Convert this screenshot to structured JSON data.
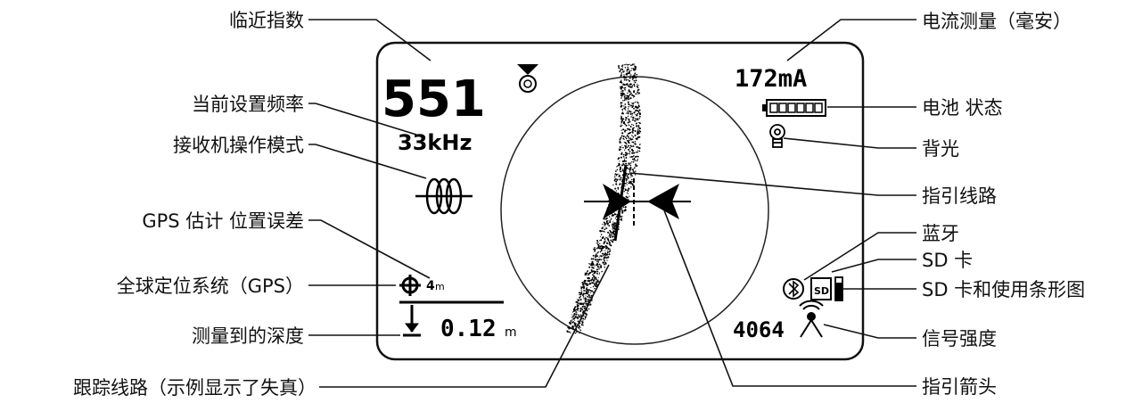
{
  "screen": {
    "proximity_value": "551",
    "frequency": "33kHz",
    "current": "172mA",
    "gps_error": "4",
    "gps_error_unit": "m",
    "depth": "0.12",
    "depth_unit": "m",
    "signal_strength": "4064",
    "sd_label": "SD"
  },
  "callouts": {
    "proximity_index": "临近指数",
    "current_frequency": "当前设置频率",
    "receiver_mode": "接收机操作模式",
    "gps_error": "GPS 估计 位置误差",
    "gps": "全球定位系统（GPS）",
    "depth": "测量到的深度",
    "trace_line": "跟踪线路（示例显示了失真）",
    "current_measurement": "电流测量（毫安）",
    "battery": "电池 状态",
    "backlight": "背光",
    "guidance_line": "指引线路",
    "bluetooth": "蓝牙",
    "sd_card": "SD 卡",
    "sd_usage": "SD 卡和使用条形图",
    "signal_strength": "信号强度",
    "guidance_arrow": "指引箭头"
  }
}
